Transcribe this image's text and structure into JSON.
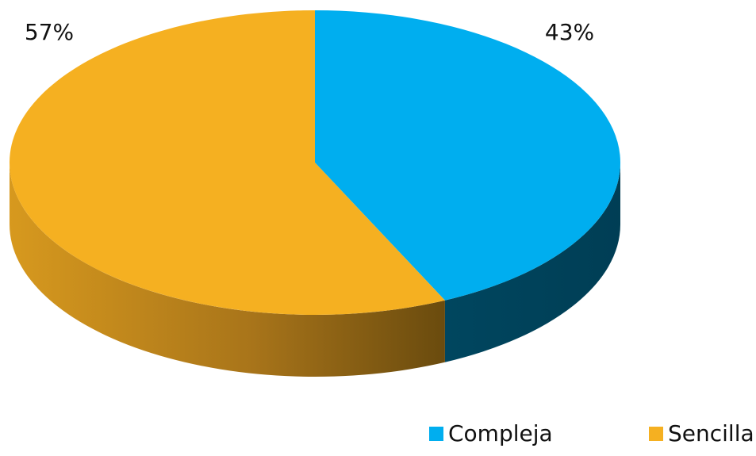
{
  "chart_data": {
    "type": "pie",
    "style": "3d",
    "categories": [
      "Compleja",
      "Sencilla"
    ],
    "values": [
      43,
      57
    ],
    "data_labels": [
      "43%",
      "57%"
    ],
    "colors": [
      "#00AEEF",
      "#F5B021"
    ],
    "side_colors": [
      "#004A66",
      "#B07A12"
    ],
    "title": "",
    "legend_position": "bottom-right"
  }
}
